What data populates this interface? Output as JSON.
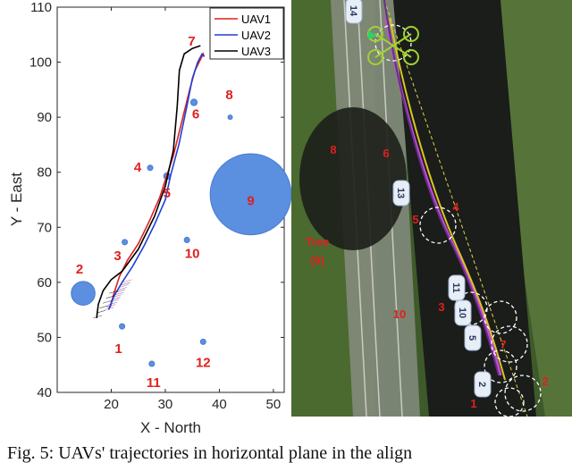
{
  "figure": {
    "caption": "Fig. 5: UAVs' trajectories in horizontal plane in the align"
  },
  "chart_data": {
    "type": "line",
    "xlabel": "X - North",
    "ylabel": "Y - East",
    "xlim": [
      10,
      52
    ],
    "ylim": [
      40,
      110
    ],
    "xticks": [
      "20",
      "30",
      "40",
      "50"
    ],
    "yticks": [
      "40",
      "50",
      "60",
      "70",
      "80",
      "90",
      "100",
      "110"
    ],
    "grid": false,
    "legend": "top-right",
    "series": [
      {
        "name": "UAV1",
        "color": "#e0201e",
        "x": [
          19.8,
          20.5,
          21.5,
          23,
          25,
          27,
          29,
          30.3,
          31.5,
          33,
          34.5,
          35.5,
          36.5,
          37,
          37.2
        ],
        "y": [
          55.5,
          58,
          61,
          64,
          67,
          71,
          75.5,
          79.5,
          83,
          89,
          95,
          98.5,
          100.5,
          101.5,
          101
        ]
      },
      {
        "name": "UAV2",
        "color": "#1f3fd6",
        "x": [
          19.5,
          20.5,
          22,
          24,
          26,
          28,
          30,
          31,
          32.5,
          34,
          35,
          36,
          36.8,
          37.2
        ],
        "y": [
          55,
          57.5,
          60,
          63,
          66.5,
          70.5,
          75,
          79.5,
          85,
          92,
          97,
          100,
          101.5,
          101
        ]
      },
      {
        "name": "UAV3",
        "color": "#000000",
        "x": [
          17.3,
          17.6,
          18.5,
          20,
          22,
          25,
          28,
          30,
          31.5,
          32.2,
          32.6,
          33.5,
          35,
          36.5
        ],
        "y": [
          53.5,
          56,
          58.5,
          60.5,
          62,
          66,
          72,
          77.5,
          84,
          92,
          98.5,
          101.5,
          102.5,
          103
        ]
      }
    ],
    "obstacles": [
      {
        "label": "1",
        "x": 22,
        "y": 52,
        "r": 0.5
      },
      {
        "label": "2",
        "x": 14.8,
        "y": 58,
        "r": 2.2
      },
      {
        "label": "3",
        "x": 22.5,
        "y": 67.3,
        "r": 0.5
      },
      {
        "label": "4",
        "x": 27.2,
        "y": 80.8,
        "r": 0.5
      },
      {
        "label": "5",
        "x": 30.3,
        "y": 79.3,
        "r": 0.6
      },
      {
        "label": "6",
        "x": 35.3,
        "y": 92.7,
        "r": 0.6
      },
      {
        "label": "7",
        "x": 39.5,
        "y": 103.7,
        "r": 0.5
      },
      {
        "label": "8",
        "x": 42,
        "y": 90,
        "r": 0.4
      },
      {
        "label": "9",
        "x": 45.8,
        "y": 76,
        "r": 7.5
      },
      {
        "label": "10",
        "x": 34,
        "y": 67.7,
        "r": 0.5
      },
      {
        "label": "11",
        "x": 27.5,
        "y": 45.2,
        "r": 0.5
      },
      {
        "label": "12",
        "x": 37,
        "y": 49.2,
        "r": 0.5
      }
    ]
  },
  "photo": {
    "labels": [
      "Tree",
      "(9)",
      "8",
      "6",
      "4",
      "5",
      "3",
      "10",
      "2",
      "1",
      "7"
    ],
    "uav_tags": [
      "14",
      "13",
      "11",
      "10",
      "5",
      "2"
    ]
  }
}
